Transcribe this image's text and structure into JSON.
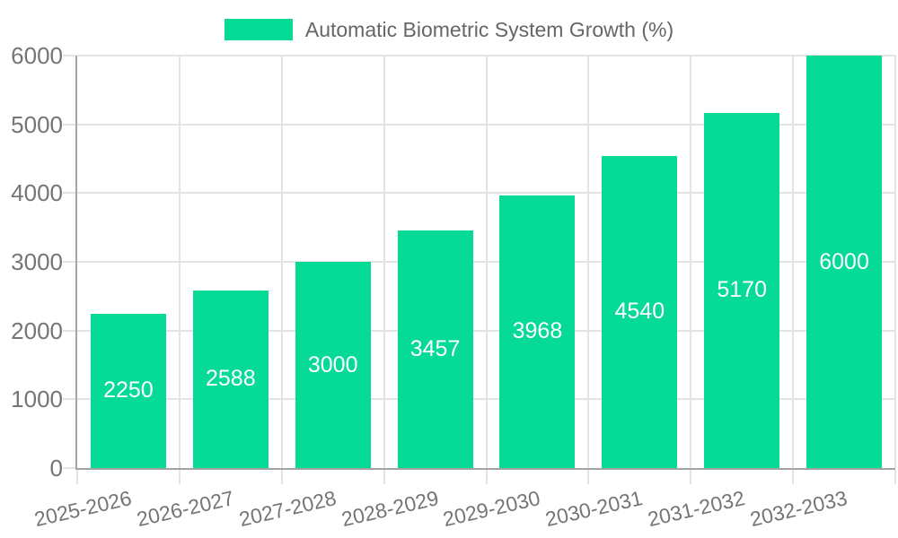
{
  "legend": {
    "label": "Automatic Biometric System Growth (%)",
    "position": "top"
  },
  "chart_data": {
    "type": "bar",
    "title": "Automatic Biometric System Growth (%)",
    "categories": [
      "2025-2026",
      "2026-2027",
      "2027-2028",
      "2028-2029",
      "2029-2030",
      "2030-2031",
      "2031-2032",
      "2032-2033"
    ],
    "values": [
      2250,
      2588,
      3000,
      3457,
      3968,
      4540,
      5170,
      6000
    ],
    "bar_value_labels": [
      "2250",
      "2588",
      "3000",
      "3457",
      "3968",
      "4540",
      "5170",
      "6000"
    ],
    "xlabel": "",
    "ylabel": "",
    "ylim": [
      0,
      6000
    ],
    "yticks": [
      0,
      1000,
      2000,
      3000,
      4000,
      5000,
      6000
    ],
    "ytick_labels": [
      "0",
      "1000",
      "2000",
      "3000",
      "4000",
      "5000",
      "6000"
    ],
    "grid": true,
    "legend_position": "top",
    "colors": {
      "bar": "#05DB96",
      "bar_label": "#ffffff",
      "grid": "#e3e3e3",
      "axis": "#a3a3a3",
      "tick_label": "#757575",
      "legend_text": "#666666",
      "background": "#ffffff"
    }
  }
}
